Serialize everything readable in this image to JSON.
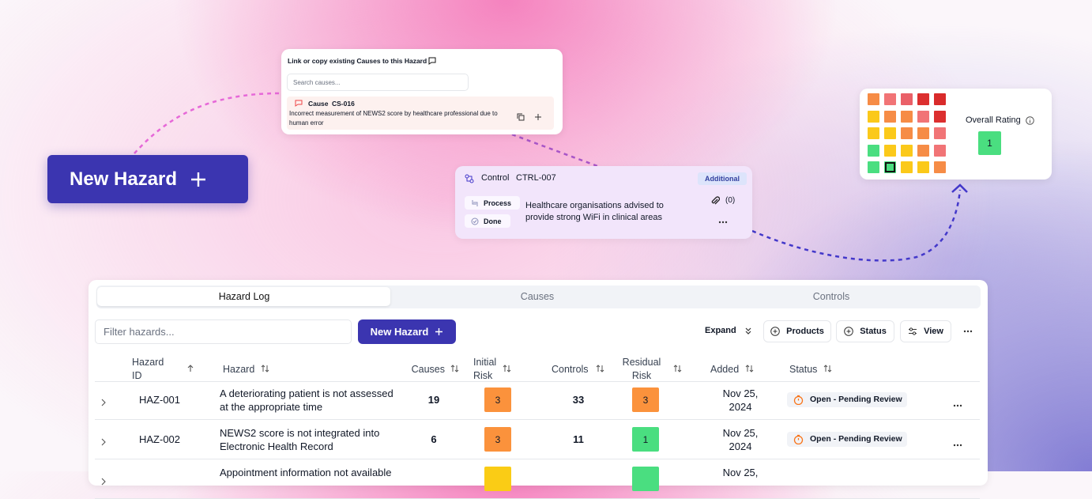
{
  "hero_button": {
    "label": "New Hazard"
  },
  "cause_popup": {
    "title": "Link or copy existing Causes to this Hazard",
    "search_placeholder": "Search causes...",
    "cause": {
      "type": "Cause",
      "id": "CS-016",
      "text": "Incorrect measurement of NEWS2 score by healthcare professional due to human error"
    }
  },
  "control_card": {
    "type": "Control",
    "id": "CTRL-007",
    "badge": "Additional",
    "tags": [
      "Process",
      "Done"
    ],
    "text": "Healthcare organisations advised to provide strong WiFi in clinical areas",
    "attachments": "(0)"
  },
  "rating_card": {
    "label": "Overall Rating",
    "value": 1,
    "value_color": "#4ade80",
    "matrix_colors": [
      [
        "#f68c46",
        "#f17476",
        "#ea6068",
        "#dc2f2f",
        "#d92b2b"
      ],
      [
        "#fbc91a",
        "#f68c46",
        "#f68c46",
        "#f17476",
        "#dc2f2f"
      ],
      [
        "#fbc91a",
        "#fbc91a",
        "#f68c46",
        "#f68c46",
        "#f17476"
      ],
      [
        "#4ade80",
        "#fbc91a",
        "#fbc91a",
        "#f68c46",
        "#f17476"
      ],
      [
        "#4ade80",
        "#4ade80",
        "#fbc91a",
        "#fbc91a",
        "#f68c46"
      ]
    ]
  },
  "table": {
    "tabs": [
      "Hazard Log",
      "Causes",
      "Controls"
    ],
    "filter_placeholder": "Filter hazards...",
    "new_button": "New Hazard",
    "toolbar": [
      "Expand",
      "Products",
      "Status",
      "View"
    ],
    "columns": [
      "Hazard ID",
      "Hazard",
      "Causes",
      "Initial Risk",
      "Controls",
      "Residual Risk",
      "Added",
      "Status"
    ],
    "rows": [
      {
        "id": "HAZ-001",
        "hazard": "A deteriorating patient is not assessed at the appropriate time",
        "causes": 19,
        "initial_risk": 3,
        "initial_color": "#fb923c",
        "controls": 33,
        "residual_risk": 3,
        "residual_color": "#fb923c",
        "added": "Nov 25, 2024",
        "status": "Open - Pending Review"
      },
      {
        "id": "HAZ-002",
        "hazard": "NEWS2 score is not integrated into Electronic Health Record",
        "causes": 6,
        "initial_risk": 3,
        "initial_color": "#fb923c",
        "controls": 11,
        "residual_risk": 1,
        "residual_color": "#4ade80",
        "added": "Nov 25, 2024",
        "status": "Open - Pending Review"
      },
      {
        "hazard": "Appointment information not available",
        "initial_color": "#facc15",
        "residual_color": "#4ade80",
        "added": "Nov 25,"
      }
    ]
  }
}
